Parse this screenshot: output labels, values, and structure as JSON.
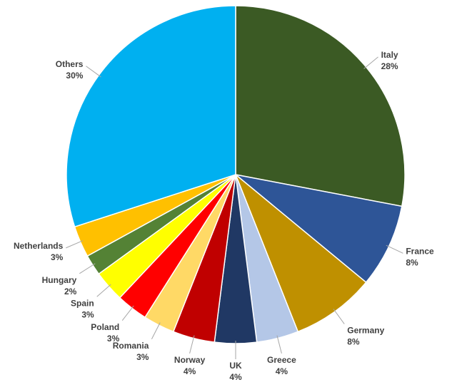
{
  "chart_data": {
    "type": "pie",
    "categories": [
      "Italy",
      "France",
      "Germany",
      "Greece",
      "UK",
      "Norway",
      "Romania",
      "Poland",
      "Spain",
      "Hungary",
      "Netherlands",
      "Others"
    ],
    "values": [
      28,
      8,
      8,
      4,
      4,
      4,
      3,
      3,
      3,
      2,
      3,
      30
    ],
    "value_labels": [
      "28%",
      "8%",
      "8%",
      "4%",
      "4%",
      "4%",
      "3%",
      "3%",
      "3%",
      "2%",
      "3%",
      "30%"
    ],
    "colors": [
      "#3b5a24",
      "#2e5597",
      "#bf9000",
      "#b4c7e7",
      "#203864",
      "#c00000",
      "#ffd966",
      "#ff0000",
      "#ffff00",
      "#548235",
      "#ffc000",
      "#00b0f0"
    ]
  }
}
